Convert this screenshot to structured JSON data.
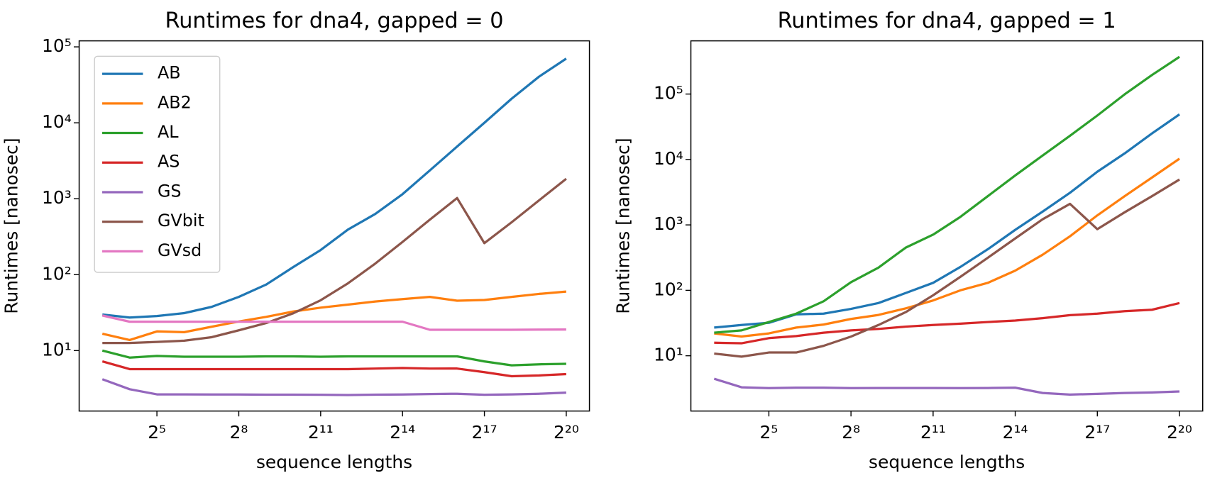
{
  "chart_data": [
    {
      "type": "line",
      "title": "Runtimes for dna4, gapped = 0",
      "x_label": "sequence lengths",
      "y_label": "Runtimes [nanosec]",
      "x": [
        8,
        16,
        32,
        64,
        128,
        256,
        512,
        1024,
        2048,
        4096,
        8192,
        16384,
        32768,
        65536,
        131072,
        262144,
        524288,
        1048576
      ],
      "xscale": "log2",
      "yscale": "log10",
      "xlim": [
        4.44,
        1889000
      ],
      "ylim": [
        1.6,
        120000
      ],
      "xticks": [
        {
          "value": 32,
          "label": "2⁵"
        },
        {
          "value": 256,
          "label": "2⁸"
        },
        {
          "value": 2048,
          "label": "2¹¹"
        },
        {
          "value": 16384,
          "label": "2¹⁴"
        },
        {
          "value": 131072,
          "label": "2¹⁷"
        },
        {
          "value": 1048576,
          "label": "2²⁰"
        }
      ],
      "yticks": [
        {
          "value": 10,
          "label": "10¹"
        },
        {
          "value": 100,
          "label": "10²"
        },
        {
          "value": 1000,
          "label": "10³"
        },
        {
          "value": 10000,
          "label": "10⁴"
        },
        {
          "value": 100000,
          "label": "10⁵"
        }
      ],
      "legend": "upper left",
      "series": [
        {
          "name": "AB",
          "color": "#1f77b4",
          "values": [
            29.9,
            27.2,
            28.5,
            31.2,
            37.6,
            51,
            74,
            126,
            211,
            393,
            630,
            1150,
            2360,
            4870,
            10000,
            20800,
            40400,
            70000
          ]
        },
        {
          "name": "AB2",
          "color": "#ff7f0e",
          "values": [
            16.7,
            13.8,
            17.9,
            17.5,
            20.6,
            24.2,
            27.8,
            32.7,
            36.8,
            40.4,
            44.3,
            47.6,
            51,
            45.4,
            46.4,
            51,
            55.8,
            59.9
          ]
        },
        {
          "name": "AL",
          "color": "#2ca02c",
          "values": [
            10,
            8.1,
            8.5,
            8.3,
            8.3,
            8.3,
            8.4,
            8.4,
            8.3,
            8.4,
            8.4,
            8.4,
            8.4,
            8.4,
            7.2,
            6.4,
            6.6,
            6.7
          ]
        },
        {
          "name": "AS",
          "color": "#d62728",
          "values": [
            7.2,
            5.7,
            5.7,
            5.7,
            5.7,
            5.7,
            5.7,
            5.7,
            5.7,
            5.7,
            5.8,
            5.9,
            5.8,
            5.8,
            5.2,
            4.6,
            4.7,
            4.9
          ]
        },
        {
          "name": "GS",
          "color": "#9467bd",
          "values": [
            4.2,
            3.1,
            2.65,
            2.65,
            2.64,
            2.64,
            2.63,
            2.63,
            2.62,
            2.6,
            2.63,
            2.64,
            2.68,
            2.7,
            2.62,
            2.65,
            2.7,
            2.8
          ]
        },
        {
          "name": "GVbit",
          "color": "#8c564b",
          "values": [
            12.6,
            12.6,
            13,
            13.5,
            15,
            18.5,
            23,
            31,
            46,
            77,
            140,
            270,
            530,
            1020,
            260,
            490,
            950,
            1830
          ]
        },
        {
          "name": "GVsd",
          "color": "#e377c2",
          "values": [
            29,
            24,
            24,
            24,
            24,
            24,
            24,
            24,
            24,
            24,
            24,
            24,
            18.8,
            18.8,
            18.8,
            18.8,
            18.9,
            19
          ]
        }
      ]
    },
    {
      "type": "line",
      "title": "Runtimes for dna4, gapped = 1",
      "x_label": "sequence lengths",
      "y_label": "Runtimes [nanosec]",
      "x": [
        8,
        16,
        32,
        64,
        128,
        256,
        512,
        1024,
        2048,
        4096,
        8192,
        16384,
        32768,
        65536,
        131072,
        262144,
        524288,
        1048576
      ],
      "xscale": "log2",
      "yscale": "log10",
      "xlim": [
        4.44,
        1889000
      ],
      "ylim": [
        1.43,
        650000
      ],
      "xticks": [
        {
          "value": 32,
          "label": "2⁵"
        },
        {
          "value": 256,
          "label": "2⁸"
        },
        {
          "value": 2048,
          "label": "2¹¹"
        },
        {
          "value": 16384,
          "label": "2¹⁴"
        },
        {
          "value": 131072,
          "label": "2¹⁷"
        },
        {
          "value": 1048576,
          "label": "2²⁰"
        }
      ],
      "yticks": [
        {
          "value": 10,
          "label": "10¹"
        },
        {
          "value": 100,
          "label": "10²"
        },
        {
          "value": 1000,
          "label": "10³"
        },
        {
          "value": 10000,
          "label": "10⁴"
        },
        {
          "value": 100000,
          "label": "10⁵"
        }
      ],
      "series": [
        {
          "color": "#1f77b4",
          "values": [
            27,
            29.5,
            31.9,
            43,
            44,
            52,
            64,
            91,
            130,
            228,
            425,
            840,
            1600,
            3100,
            6500,
            12400,
            25000,
            49000
          ]
        },
        {
          "color": "#ff7f0e",
          "values": [
            22,
            19.7,
            22,
            27,
            30,
            36.5,
            42,
            53,
            70,
            100,
            130,
            200,
            350,
            670,
            1400,
            2750,
            5300,
            10300
          ]
        },
        {
          "color": "#2ca02c",
          "values": [
            22.5,
            24.4,
            32.8,
            44,
            68,
            133,
            222,
            450,
            710,
            1330,
            2750,
            5700,
            11500,
            23000,
            47000,
            99000,
            196000,
            370000
          ]
        },
        {
          "color": "#d62728",
          "values": [
            15.8,
            15.5,
            18.6,
            20,
            22.5,
            24.4,
            25.7,
            27.9,
            29.5,
            31,
            32.8,
            34.5,
            37.5,
            41.7,
            44,
            48,
            50.5,
            64
          ]
        },
        {
          "color": "#9467bd",
          "values": [
            4.45,
            3.3,
            3.2,
            3.25,
            3.25,
            3.2,
            3.22,
            3.22,
            3.22,
            3.2,
            3.22,
            3.25,
            2.7,
            2.55,
            2.62,
            2.7,
            2.75,
            2.85
          ]
        },
        {
          "color": "#8c564b",
          "values": [
            10.8,
            9.7,
            11.2,
            11.2,
            14.2,
            19.6,
            29.5,
            46.5,
            84,
            161,
            315,
            620,
            1220,
            2100,
            860,
            1560,
            2750,
            4950
          ]
        }
      ]
    }
  ]
}
